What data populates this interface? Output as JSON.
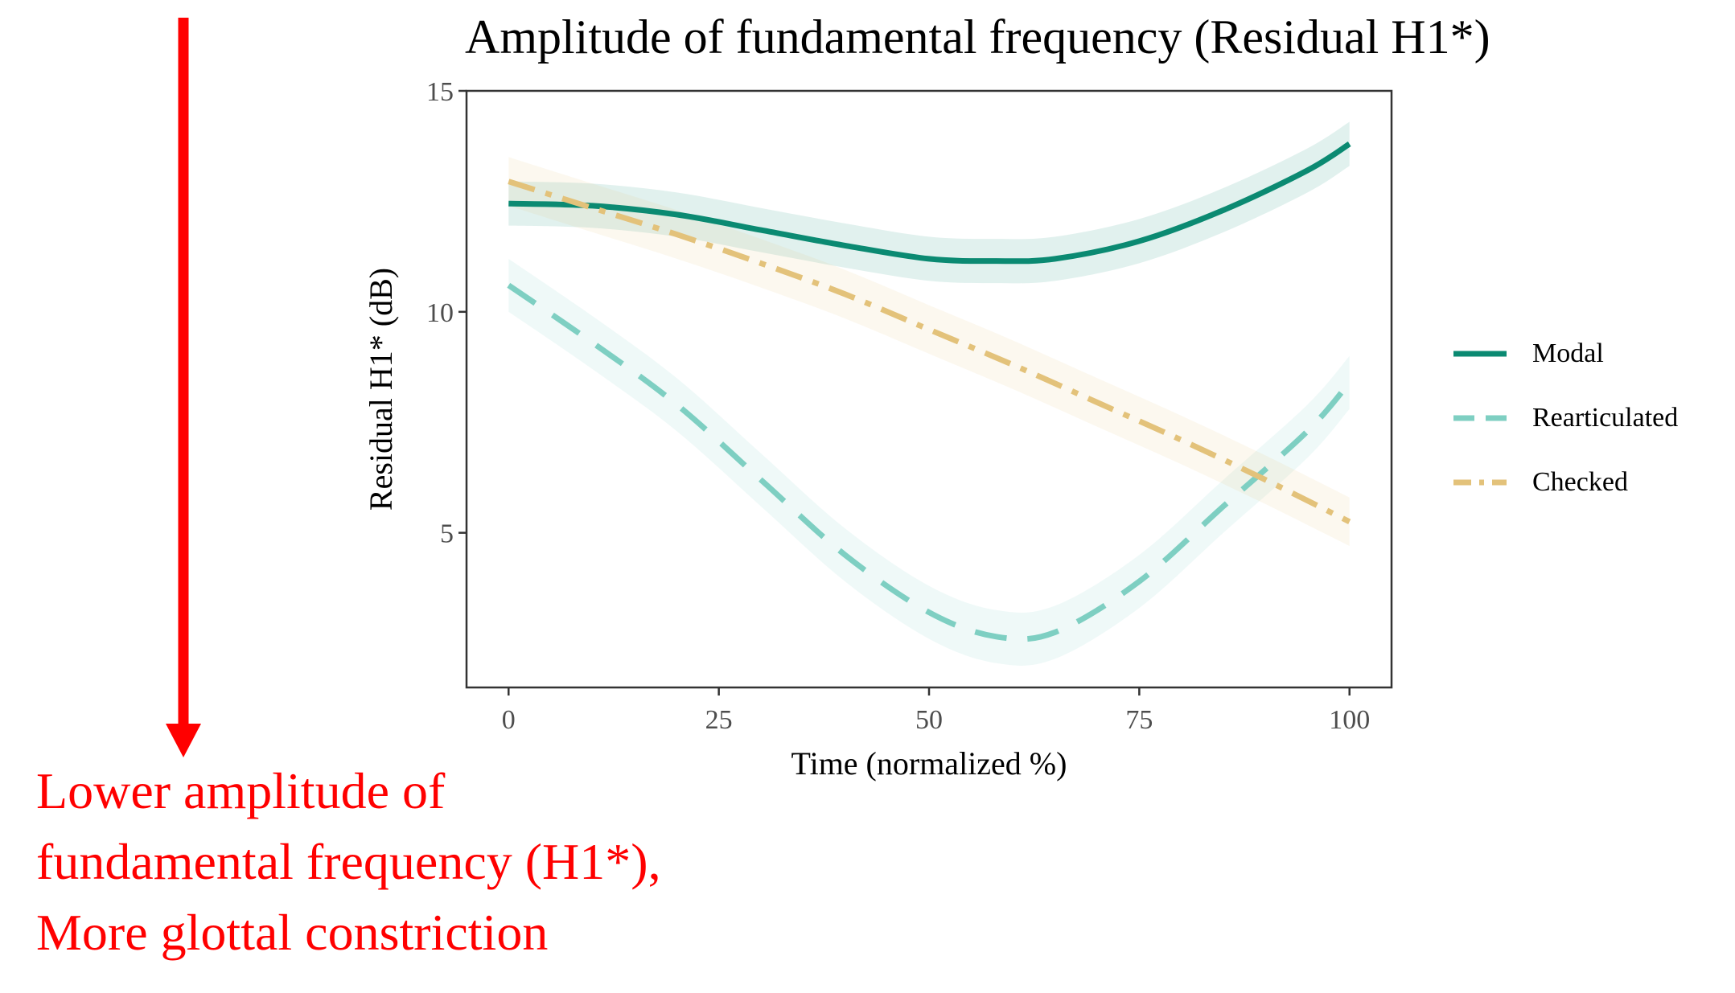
{
  "title": "Amplitude of fundamental frequency (Residual H1*)",
  "annotation": {
    "lines": [
      "Lower amplitude of",
      "fundamental frequency (H1*),",
      "More glottal constriction"
    ],
    "arrow_color": "#ff0000",
    "text_color": "#ff0000"
  },
  "chart_data": {
    "type": "line",
    "title": "Amplitude of fundamental frequency (Residual H1*)",
    "xlabel": "Time (normalized %)",
    "ylabel": "Residual H1* (dB)",
    "xlim": [
      -5,
      105
    ],
    "ylim": [
      1.5,
      15
    ],
    "xticks": [
      0,
      25,
      50,
      75,
      100
    ],
    "xtick_labels": [
      "0",
      "25",
      "50",
      "75",
      "100"
    ],
    "yticks": [
      5,
      10,
      15
    ],
    "ytick_labels": [
      "5",
      "10",
      "15"
    ],
    "grid": false,
    "legend_position": "right",
    "series": [
      {
        "name": "Modal",
        "color": "#0b8a72",
        "linestyle": "solid",
        "x": [
          0,
          10,
          20,
          30,
          40,
          50,
          58,
          65,
          75,
          85,
          95,
          100
        ],
        "y": [
          12.45,
          12.4,
          12.2,
          11.85,
          11.5,
          11.2,
          11.15,
          11.2,
          11.6,
          12.3,
          13.2,
          13.8
        ],
        "ci_width": 0.5
      },
      {
        "name": "Rearticulated",
        "color": "#7ecfc2",
        "linestyle": "dashed",
        "x": [
          0,
          10,
          20,
          30,
          40,
          50,
          58,
          65,
          75,
          85,
          95,
          100
        ],
        "y": [
          10.6,
          9.3,
          7.9,
          6.2,
          4.5,
          3.2,
          2.65,
          2.75,
          3.9,
          5.6,
          7.3,
          8.4
        ],
        "ci_width": 0.6
      },
      {
        "name": "Checked",
        "color": "#e3c27a",
        "linestyle": "dashdot",
        "x": [
          0,
          10,
          20,
          30,
          40,
          50,
          60,
          70,
          80,
          90,
          100
        ],
        "y": [
          12.95,
          12.35,
          11.75,
          11.1,
          10.4,
          9.6,
          8.8,
          7.95,
          7.1,
          6.2,
          5.25
        ],
        "ci_width": 0.55
      }
    ]
  }
}
